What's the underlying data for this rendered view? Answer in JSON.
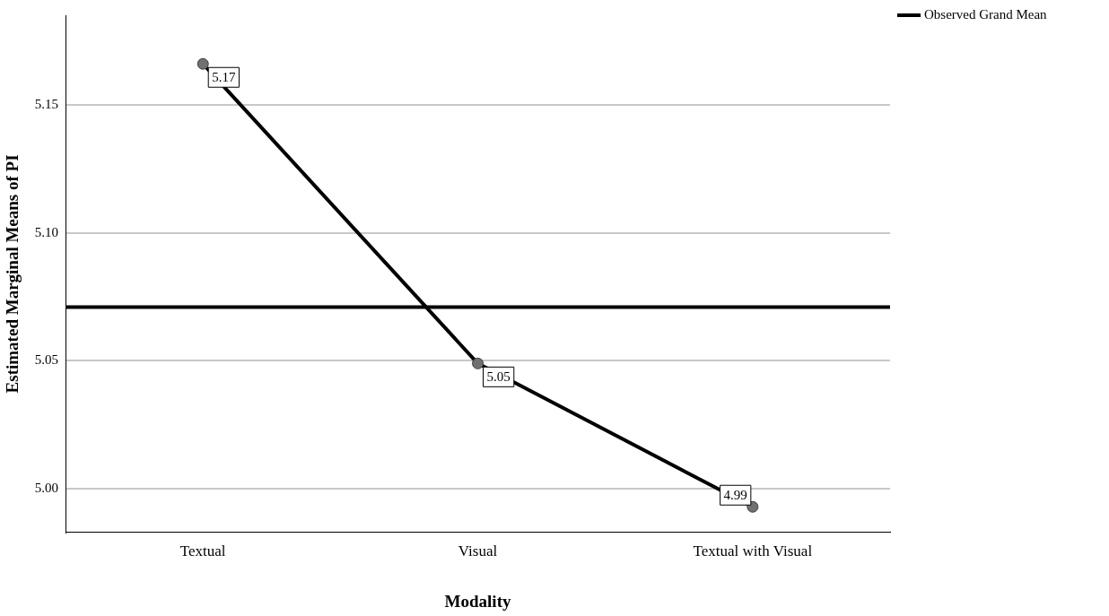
{
  "chart_data": {
    "type": "line",
    "xlabel": "Modality",
    "ylabel": "Estimated Marginal Means of PI",
    "categories": [
      "Textual",
      "Visual",
      "Textual with Visual"
    ],
    "series": [
      {
        "color": "#000000",
        "values": [
          5.166,
          5.049,
          4.993
        ],
        "value_labels": [
          "5.17",
          "5.05",
          "4.99"
        ]
      }
    ],
    "ylim": [
      4.983,
      5.185
    ],
    "yticks": [
      {
        "value": 5.0,
        "label": "5.00"
      },
      5.05,
      {
        "value": 5.1,
        "label": "5.10"
      },
      5.15
    ],
    "ref_lines": [
      {
        "axis": "y",
        "value": 5.071,
        "label": "Observed Grand Mean",
        "color": "#000000"
      }
    ],
    "grid": "y",
    "legend": "top right",
    "marker": "circle",
    "line_style": "solid"
  }
}
